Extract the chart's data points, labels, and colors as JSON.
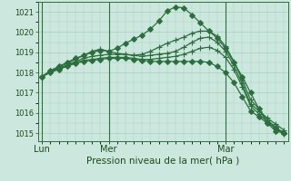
{
  "title": "Pression niveau de la mer( hPa )",
  "ylabel_values": [
    1015,
    1016,
    1017,
    1018,
    1019,
    1020,
    1021
  ],
  "ylim": [
    1014.6,
    1021.5
  ],
  "background_color": "#cce8de",
  "grid_color": "#aacfbf",
  "line_color": "#2d6e3e",
  "x_ticks_labels": [
    "Lun",
    "Mer",
    "Mar"
  ],
  "x_ticks_pos": [
    0,
    8,
    22
  ],
  "x_vlines": [
    0,
    8,
    22
  ],
  "n_points": 30,
  "series": [
    {
      "marker": "D",
      "markersize": 3,
      "data": [
        1017.8,
        1018.1,
        1018.3,
        1018.5,
        1018.7,
        1018.85,
        1019.0,
        1019.1,
        1019.05,
        1019.2,
        1019.45,
        1019.65,
        1019.85,
        1020.15,
        1020.55,
        1021.05,
        1021.25,
        1021.2,
        1020.85,
        1020.45,
        1020.05,
        1019.7,
        1019.2,
        1018.5,
        1017.8,
        1017.0,
        1016.2,
        1015.5,
        1015.1,
        1015.0
      ]
    },
    {
      "marker": "+",
      "markersize": 4,
      "data": [
        1017.8,
        1018.05,
        1018.25,
        1018.45,
        1018.65,
        1018.85,
        1019.05,
        1019.15,
        1019.05,
        1018.95,
        1018.9,
        1018.85,
        1018.9,
        1019.05,
        1019.25,
        1019.45,
        1019.6,
        1019.75,
        1019.95,
        1020.05,
        1020.05,
        1019.8,
        1019.3,
        1018.55,
        1017.65,
        1016.65,
        1016.2,
        1015.65,
        1015.3,
        1015.0
      ]
    },
    {
      "marker": "+",
      "markersize": 4,
      "data": [
        1017.8,
        1018.0,
        1018.2,
        1018.35,
        1018.55,
        1018.7,
        1018.8,
        1018.85,
        1018.9,
        1018.9,
        1018.9,
        1018.85,
        1018.8,
        1018.85,
        1018.9,
        1018.95,
        1019.05,
        1019.25,
        1019.5,
        1019.7,
        1019.75,
        1019.5,
        1019.05,
        1018.35,
        1017.45,
        1016.45,
        1016.1,
        1015.75,
        1015.45,
        1015.15
      ]
    },
    {
      "marker": "+",
      "markersize": 4,
      "data": [
        1017.8,
        1018.05,
        1018.2,
        1018.35,
        1018.5,
        1018.6,
        1018.65,
        1018.7,
        1018.75,
        1018.75,
        1018.75,
        1018.7,
        1018.65,
        1018.65,
        1018.7,
        1018.75,
        1018.8,
        1018.9,
        1019.05,
        1019.2,
        1019.25,
        1019.1,
        1018.75,
        1018.15,
        1017.3,
        1016.35,
        1015.95,
        1015.55,
        1015.25,
        1014.95
      ]
    },
    {
      "marker": "D",
      "markersize": 3,
      "data": [
        1017.8,
        1018.0,
        1018.15,
        1018.3,
        1018.45,
        1018.55,
        1018.6,
        1018.65,
        1018.7,
        1018.7,
        1018.7,
        1018.65,
        1018.6,
        1018.55,
        1018.55,
        1018.55,
        1018.55,
        1018.55,
        1018.55,
        1018.55,
        1018.5,
        1018.3,
        1018.0,
        1017.5,
        1016.8,
        1016.1,
        1015.8,
        1015.5,
        1015.25,
        1015.0
      ]
    }
  ]
}
